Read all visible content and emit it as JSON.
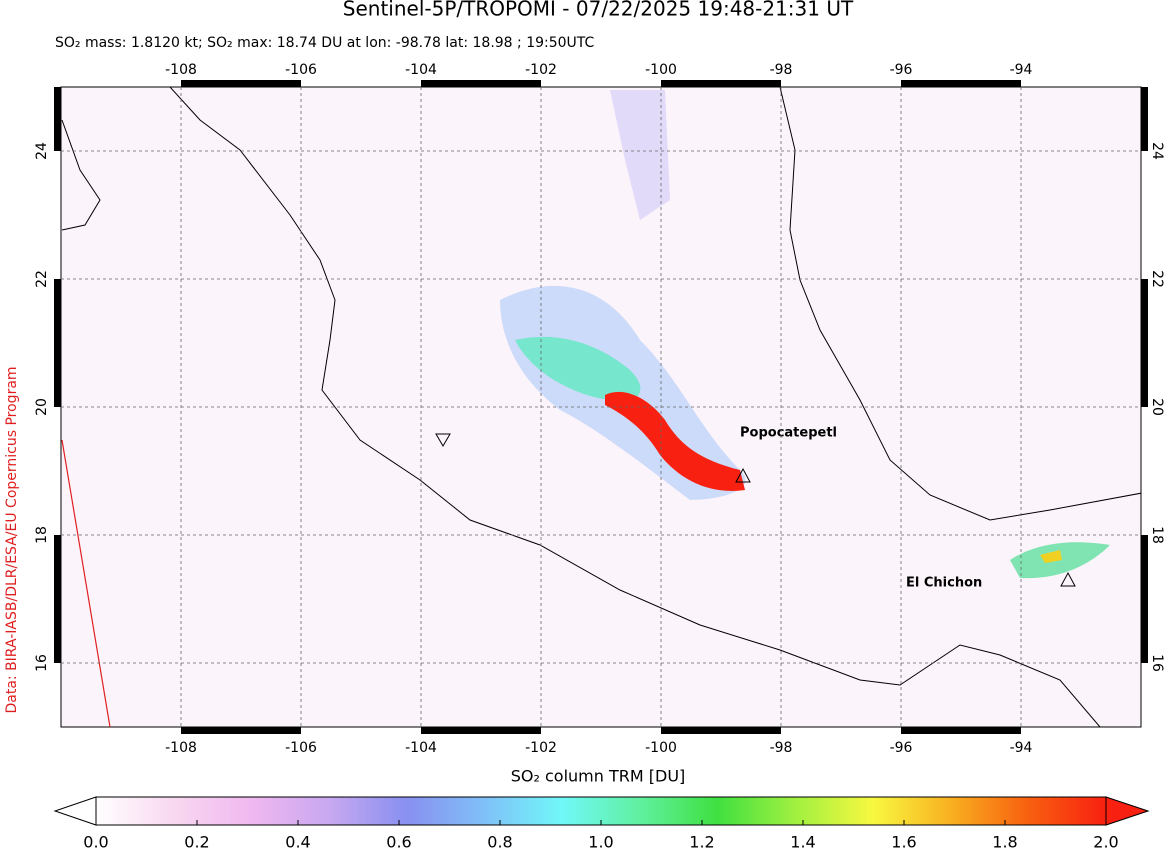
{
  "header": {
    "title": "Sentinel-5P/TROPOMI - 07/22/2025 19:48-21:31 UT",
    "subtitle": "SO₂ mass: 1.8120 kt; SO₂ max: 18.74 DU at lon: -98.78 lat: 18.98 ; 19:50UTC",
    "credit": "Data: BIRA-IASB/DLR/ESA/EU Copernicus Program"
  },
  "map": {
    "lonlim": [
      -110,
      -92
    ],
    "latlim": [
      15,
      25
    ],
    "lon_ticks": [
      -108,
      -106,
      -104,
      -102,
      -100,
      -98,
      -96,
      -94
    ],
    "lat_ticks": [
      16,
      18,
      20,
      22,
      24
    ],
    "grid": true,
    "volcanoes": [
      {
        "name": "Popocatepetl"
      },
      {
        "name": "El Chichon"
      }
    ]
  },
  "colorbar": {
    "label": "SO₂ column TRM [DU]",
    "lim": [
      0,
      2
    ],
    "ticks": [
      {
        "value": 0,
        "label": "0.0"
      },
      {
        "value": 0.2,
        "label": "0.2"
      },
      {
        "value": 0.4,
        "label": "0.4"
      },
      {
        "value": 0.6,
        "label": "0.6"
      },
      {
        "value": 0.8,
        "label": "0.8"
      },
      {
        "value": 1,
        "label": "1.0"
      },
      {
        "value": 1.2,
        "label": "1.2"
      },
      {
        "value": 1.4,
        "label": "1.4"
      },
      {
        "value": 1.6,
        "label": "1.6"
      },
      {
        "value": 1.8,
        "label": "1.8"
      },
      {
        "value": 2,
        "label": "2.0"
      }
    ],
    "colors": [
      "#ffffff",
      "#f8d8f0",
      "#f0b8f0",
      "#c8a8f0",
      "#8890f0",
      "#80c0f8",
      "#70f8f8",
      "#60f0a0",
      "#40e040",
      "#a0f040",
      "#f8f840",
      "#f8b020",
      "#f86010",
      "#f82010"
    ]
  }
}
